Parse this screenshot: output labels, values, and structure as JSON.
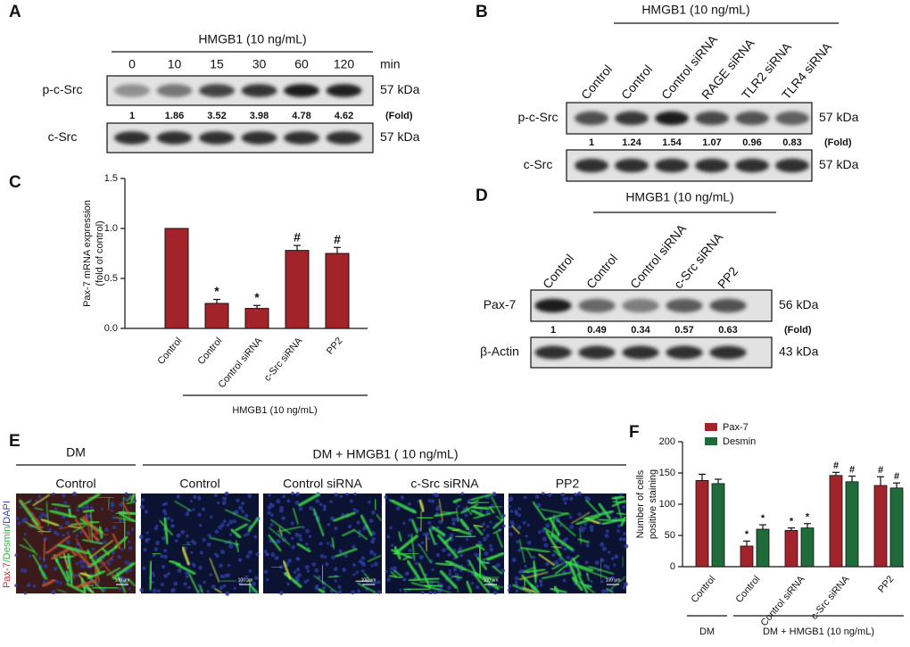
{
  "blots": {
    "a": {
      "label": "A",
      "treatment": "HMGB1 (10 ng/mL)",
      "lanes": [
        "0",
        "10",
        "15",
        "30",
        "60",
        "120"
      ],
      "lane_unit": "min",
      "rows": [
        {
          "name": "p-c-Src",
          "size": "57 kDa"
        },
        {
          "name": "c-Src",
          "size": "57 kDa"
        }
      ],
      "fold": [
        1,
        1.86,
        3.52,
        3.98,
        4.78,
        4.62
      ],
      "fold_label": "(Fold)"
    },
    "b": {
      "label": "B",
      "treatment": "HMGB1 (10 ng/mL)",
      "lanes": [
        "Control",
        "Control",
        "Control siRNA",
        "RAGE siRNA",
        "TLR2 siRNA",
        "TLR4 siRNA"
      ],
      "rows": [
        {
          "name": "p-c-Src",
          "size": "57 kDa"
        },
        {
          "name": "c-Src",
          "size": "57 kDa"
        }
      ],
      "fold": [
        1,
        1.24,
        1.54,
        1.07,
        0.96,
        0.83
      ],
      "fold_label": "(Fold)"
    },
    "d": {
      "label": "D",
      "treatment": "HMGB1 (10 ng/mL)",
      "lanes": [
        "Control",
        "Control",
        "Control siRNA",
        "c-Src siRNA",
        "PP2"
      ],
      "rows": [
        {
          "name": "Pax-7",
          "size": "56 kDa"
        },
        {
          "name": "β-Actin",
          "size": "43 kDa"
        }
      ],
      "fold": [
        1,
        0.49,
        0.34,
        0.57,
        0.63
      ],
      "fold_label": "(Fold)"
    }
  },
  "images": {
    "label": "E",
    "groups": [
      "DM",
      "DM + HMGB1 ( 10 ng/mL)"
    ],
    "titles": [
      "Control",
      "Control",
      "Control siRNA",
      "c-Src siRNA",
      "PP2"
    ],
    "stain": [
      "Pax-7",
      "/Desmin",
      "/DAPI"
    ],
    "scale_bar": "100 μm"
  },
  "chart_data": [
    {
      "type": "bar",
      "label": "C",
      "y_label": [
        "Pax-7 mRNA expression",
        "(fold of control)"
      ],
      "categories": [
        "Control",
        "Control",
        "Control siRNA",
        "c-Src siRNA",
        "PP2"
      ],
      "values": [
        1.0,
        0.25,
        0.2,
        0.78,
        0.75
      ],
      "errors": [
        null,
        0.04,
        0.03,
        0.05,
        0.06
      ],
      "annotations": [
        null,
        "*",
        "*",
        "#",
        "#"
      ],
      "color": "#a3232a",
      "ylim": [
        0,
        1.5
      ],
      "yticks": [
        {
          "value": 0,
          "label": "0.0"
        },
        0.5,
        {
          "value": 1,
          "label": "1.0"
        },
        1.5
      ],
      "group_label": "HMGB1 (10 ng/mL)"
    },
    {
      "type": "grouped_bar",
      "label": "F",
      "y_label": [
        "Number of cells",
        "positive staining"
      ],
      "categories": [
        "Control",
        "Control",
        "Control siRNA",
        "c-Src siRNA",
        "PP2"
      ],
      "series": [
        {
          "name": "Pax-7",
          "color": "#a3232a",
          "values": [
            138,
            33,
            58,
            146,
            130
          ],
          "errors": [
            10,
            8,
            4,
            5,
            14
          ],
          "annotations": [
            null,
            "*",
            "*",
            "#",
            "#"
          ]
        },
        {
          "name": "Desmin",
          "color": "#1f6b3a",
          "values": [
            133,
            60,
            62,
            136,
            126
          ],
          "errors": [
            7,
            7,
            7,
            9,
            8
          ],
          "annotations": [
            null,
            "*",
            "*",
            "#",
            "#"
          ]
        }
      ],
      "ylim": [
        0,
        200
      ],
      "yticks": [
        0,
        50,
        100,
        150,
        200
      ],
      "legend": "top-left",
      "groups": [
        "DM",
        "DM + HMGB1 (10 ng/mL)"
      ]
    }
  ]
}
